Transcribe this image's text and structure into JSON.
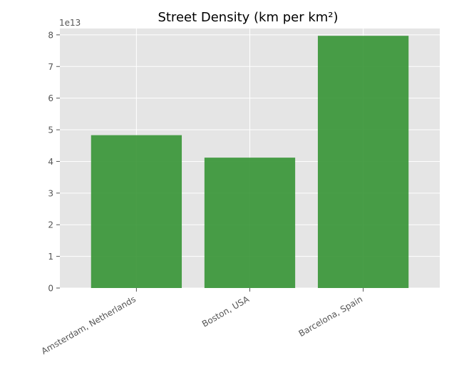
{
  "chart_data": {
    "type": "bar",
    "title": "Street Density (km per km²)",
    "xlabel": "",
    "ylabel": "",
    "y_scale_label": "1e13",
    "y_multiplier": 10000000000000.0,
    "categories": [
      "Amsterdam, Netherlands",
      "Boston, USA",
      "Barcelona, Spain"
    ],
    "values": [
      48300000000000.0,
      41200000000000.0,
      79700000000000.0
    ],
    "ylim": [
      0,
      82000000000000.0
    ],
    "yticks": [
      0,
      10000000000000.0,
      20000000000000.0,
      30000000000000.0,
      40000000000000.0,
      50000000000000.0,
      60000000000000.0,
      70000000000000.0,
      80000000000000.0
    ],
    "ytick_labels": [
      "0",
      "1",
      "2",
      "3",
      "4",
      "5",
      "6",
      "7",
      "8"
    ],
    "grid": true,
    "bar_color": "#3a9638",
    "background_color": "#e5e5e5",
    "grid_color": "#ffffff"
  }
}
